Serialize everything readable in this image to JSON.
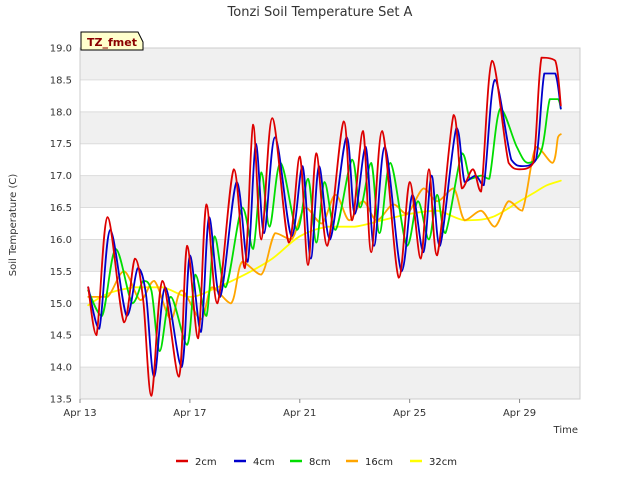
{
  "chart_data": {
    "type": "line",
    "title": "Tonzi Soil Temperature Set A",
    "xlabel": "Time",
    "ylabel": "Soil Temperature (C)",
    "ylim": [
      13.5,
      19.0
    ],
    "xlim": [
      13.0,
      31.2
    ],
    "x_unit": "day of April",
    "y_ticks": [
      "13.5",
      "14.0",
      "14.5",
      "15.0",
      "15.5",
      "16.0",
      "16.5",
      "17.0",
      "17.5",
      "18.0",
      "18.5",
      "19.0"
    ],
    "x_ticks": [
      {
        "x": 13,
        "label": "Apr 13"
      },
      {
        "x": 17,
        "label": "Apr 17"
      },
      {
        "x": 21,
        "label": "Apr 21"
      },
      {
        "x": 25,
        "label": "Apr 25"
      },
      {
        "x": 29,
        "label": "Apr 29"
      }
    ],
    "annotation": "TZ_fmet",
    "grid": "horizontal bands",
    "legend_position": "bottom",
    "series": [
      {
        "name": "2cm",
        "color": "#dd0000",
        "x": [
          13.3,
          13.6,
          14.0,
          14.6,
          15.0,
          15.3,
          15.6,
          16.0,
          16.6,
          16.9,
          17.3,
          17.6,
          18.0,
          18.6,
          19.0,
          19.3,
          19.6,
          20.0,
          20.6,
          21.0,
          21.3,
          21.6,
          22.0,
          22.6,
          22.9,
          23.3,
          23.6,
          24.0,
          24.6,
          25.0,
          25.4,
          25.7,
          26.0,
          26.6,
          26.9,
          27.3,
          27.6,
          28.0,
          28.6,
          29.0,
          29.5,
          29.8,
          30.3,
          30.5
        ],
        "y": [
          15.25,
          14.5,
          16.35,
          14.7,
          15.7,
          15.05,
          13.55,
          15.35,
          13.85,
          15.9,
          14.45,
          16.55,
          15.0,
          17.1,
          15.55,
          17.8,
          16.0,
          17.9,
          15.95,
          17.3,
          15.6,
          17.35,
          15.9,
          17.85,
          16.3,
          17.7,
          15.8,
          17.7,
          15.4,
          16.9,
          15.7,
          17.1,
          15.75,
          17.95,
          16.8,
          17.1,
          16.75,
          18.8,
          17.2,
          17.1,
          17.2,
          18.85,
          18.8,
          18.1
        ]
      },
      {
        "name": "4cm",
        "color": "#0000cc",
        "x": [
          13.3,
          13.7,
          14.1,
          14.7,
          15.1,
          15.4,
          15.7,
          16.1,
          16.7,
          17.0,
          17.4,
          17.7,
          18.1,
          18.7,
          19.1,
          19.4,
          19.7,
          20.1,
          20.7,
          21.1,
          21.4,
          21.7,
          22.1,
          22.7,
          23.0,
          23.4,
          23.7,
          24.1,
          24.7,
          25.1,
          25.5,
          25.8,
          26.1,
          26.7,
          27.0,
          27.4,
          27.7,
          28.1,
          28.7,
          29.1,
          29.6,
          29.9,
          30.3,
          30.5
        ],
        "y": [
          15.25,
          14.6,
          16.15,
          14.8,
          15.55,
          15.15,
          13.85,
          15.25,
          14.0,
          15.75,
          14.55,
          16.35,
          15.1,
          16.9,
          15.65,
          17.5,
          16.1,
          17.6,
          16.05,
          17.15,
          15.7,
          17.15,
          16.0,
          17.6,
          16.4,
          17.45,
          15.9,
          17.45,
          15.5,
          16.7,
          15.8,
          17.0,
          15.9,
          17.75,
          16.9,
          17.0,
          16.85,
          18.5,
          17.25,
          17.15,
          17.25,
          18.6,
          18.6,
          18.05
        ]
      },
      {
        "name": "8cm",
        "color": "#00dd00",
        "x": [
          13.3,
          13.8,
          14.3,
          14.9,
          15.3,
          15.6,
          15.9,
          16.3,
          16.9,
          17.2,
          17.6,
          17.9,
          18.3,
          18.9,
          19.3,
          19.6,
          19.9,
          20.3,
          20.9,
          21.3,
          21.6,
          21.9,
          22.3,
          22.9,
          23.2,
          23.6,
          23.9,
          24.3,
          24.9,
          25.3,
          25.7,
          26.0,
          26.3,
          26.9,
          27.2,
          27.6,
          27.9,
          28.3,
          28.9,
          29.3,
          29.8,
          30.1,
          30.4,
          30.5
        ],
        "y": [
          15.2,
          14.8,
          15.85,
          15.0,
          15.35,
          15.2,
          14.25,
          15.1,
          14.35,
          15.45,
          14.8,
          16.05,
          15.25,
          16.5,
          15.85,
          17.05,
          16.2,
          17.2,
          16.15,
          16.95,
          15.95,
          16.9,
          16.15,
          17.25,
          16.5,
          17.2,
          16.1,
          17.2,
          15.9,
          16.6,
          16.0,
          16.7,
          16.1,
          17.35,
          16.95,
          17.0,
          16.95,
          18.05,
          17.45,
          17.2,
          17.4,
          18.2,
          18.2,
          18.05
        ]
      },
      {
        "name": "16cm",
        "color": "#ffa500",
        "x": [
          13.3,
          14.0,
          14.6,
          15.2,
          15.7,
          16.3,
          16.7,
          17.4,
          17.8,
          18.5,
          18.9,
          19.6,
          20.1,
          20.7,
          21.2,
          21.8,
          22.3,
          22.8,
          23.3,
          23.8,
          24.4,
          24.9,
          25.5,
          26.0,
          26.6,
          27.0,
          27.6,
          28.1,
          28.6,
          29.1,
          29.6,
          30.2,
          30.4,
          30.5
        ],
        "y": [
          15.1,
          15.1,
          15.5,
          15.05,
          15.35,
          14.75,
          15.2,
          14.75,
          15.25,
          15.0,
          15.65,
          15.45,
          16.1,
          16.0,
          16.5,
          16.25,
          16.7,
          16.3,
          16.6,
          16.3,
          16.55,
          16.4,
          16.8,
          16.6,
          16.8,
          16.3,
          16.45,
          16.2,
          16.6,
          16.45,
          17.45,
          17.2,
          17.6,
          17.65
        ]
      },
      {
        "name": "32cm",
        "color": "#ffff00",
        "x": [
          13.3,
          14.0,
          15.0,
          16.0,
          17.0,
          18.0,
          19.0,
          20.0,
          21.0,
          22.0,
          23.0,
          24.0,
          25.0,
          26.0,
          27.0,
          28.0,
          29.0,
          29.6,
          30.0,
          30.5
        ],
        "y": [
          14.97,
          15.15,
          15.25,
          15.25,
          15.1,
          15.25,
          15.45,
          15.7,
          16.05,
          16.2,
          16.2,
          16.3,
          16.4,
          16.45,
          16.3,
          16.35,
          16.6,
          16.75,
          16.85,
          16.92
        ]
      }
    ]
  }
}
